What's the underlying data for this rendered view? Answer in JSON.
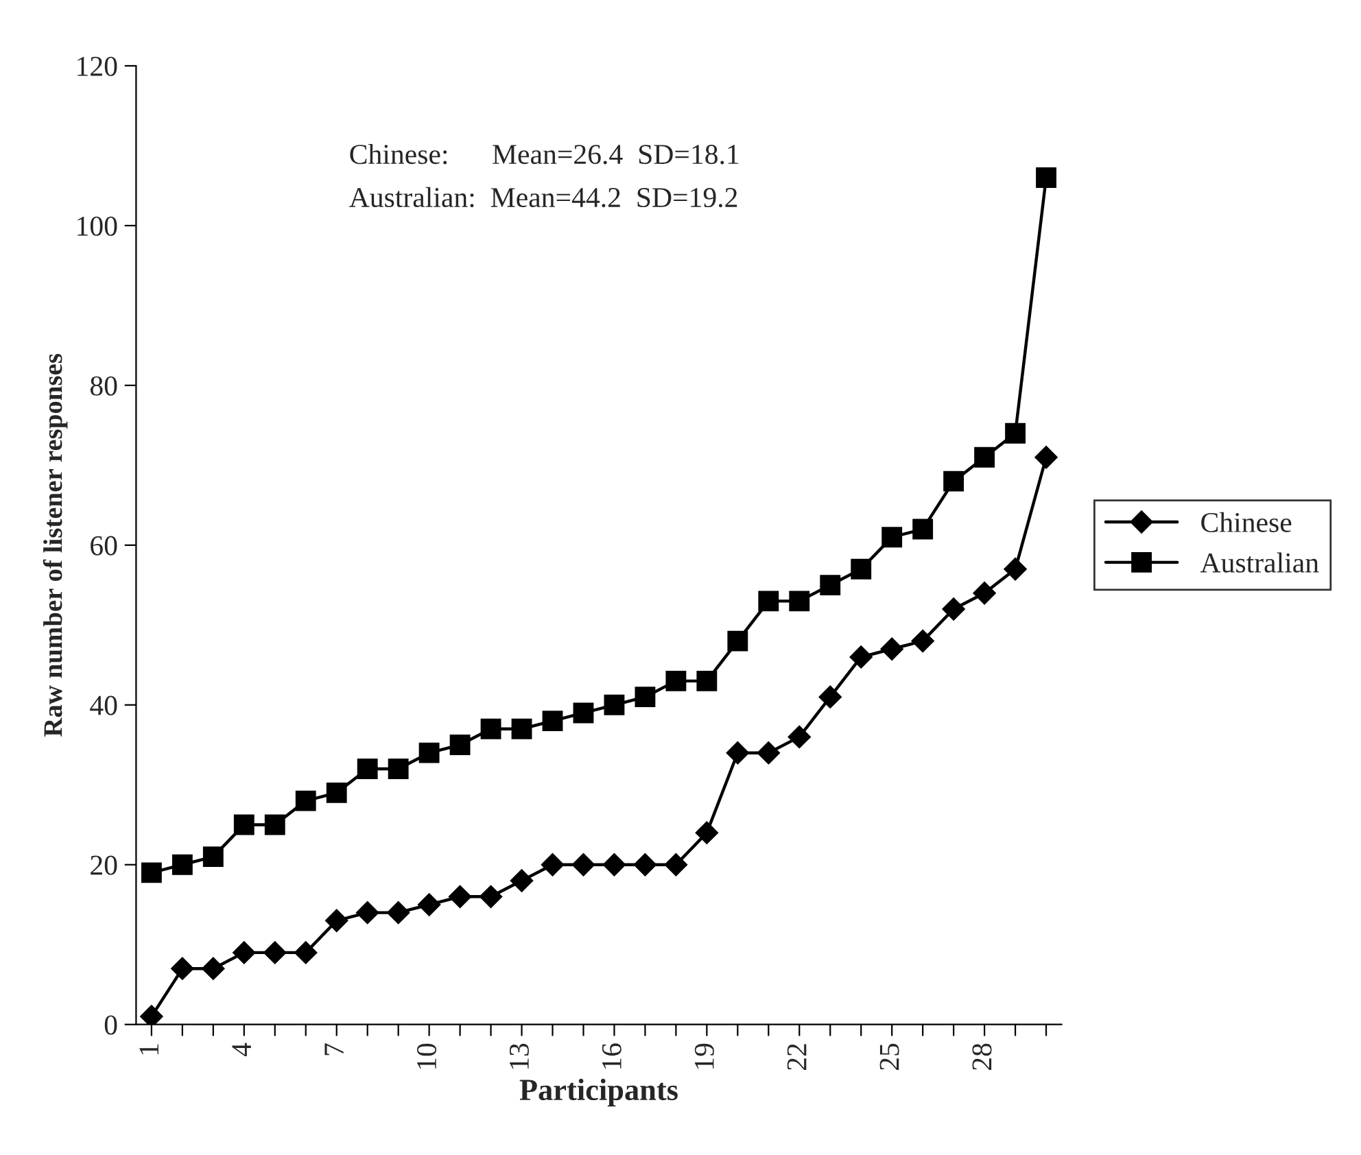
{
  "chart_data": {
    "type": "line",
    "xlabel": "Participants",
    "ylabel": "Raw number of listener responses",
    "categories": [
      "1",
      null,
      null,
      "4",
      null,
      null,
      "7",
      null,
      null,
      "10",
      null,
      null,
      "13",
      null,
      null,
      "16",
      null,
      null,
      "19",
      null,
      null,
      "22",
      null,
      null,
      "25",
      null,
      null,
      "28",
      null,
      null
    ],
    "series": [
      {
        "name": "Chinese",
        "color": "#000000",
        "marker": "diamond",
        "values": [
          1,
          7,
          7,
          9,
          9,
          9,
          13,
          14,
          14,
          15,
          16,
          16,
          18,
          20,
          20,
          20,
          20,
          20,
          24,
          34,
          34,
          36,
          41,
          46,
          47,
          48,
          52,
          54,
          57,
          71
        ]
      },
      {
        "name": "Australian",
        "color": "#000000",
        "marker": "square",
        "values": [
          19,
          20,
          21,
          25,
          25,
          28,
          29,
          32,
          32,
          34,
          35,
          37,
          37,
          38,
          39,
          40,
          41,
          43,
          43,
          48,
          53,
          53,
          55,
          57,
          61,
          62,
          68,
          71,
          74,
          106
        ]
      }
    ],
    "ylim": [
      0,
      120
    ],
    "yticks": [
      0,
      20,
      40,
      60,
      80,
      100,
      120
    ],
    "annotations": [
      "Chinese:      Mean=26.4  SD=18.1",
      "Australian:  Mean=44.2  SD=19.2"
    ],
    "grid": false,
    "legend": "right",
    "line_style": "solid"
  }
}
